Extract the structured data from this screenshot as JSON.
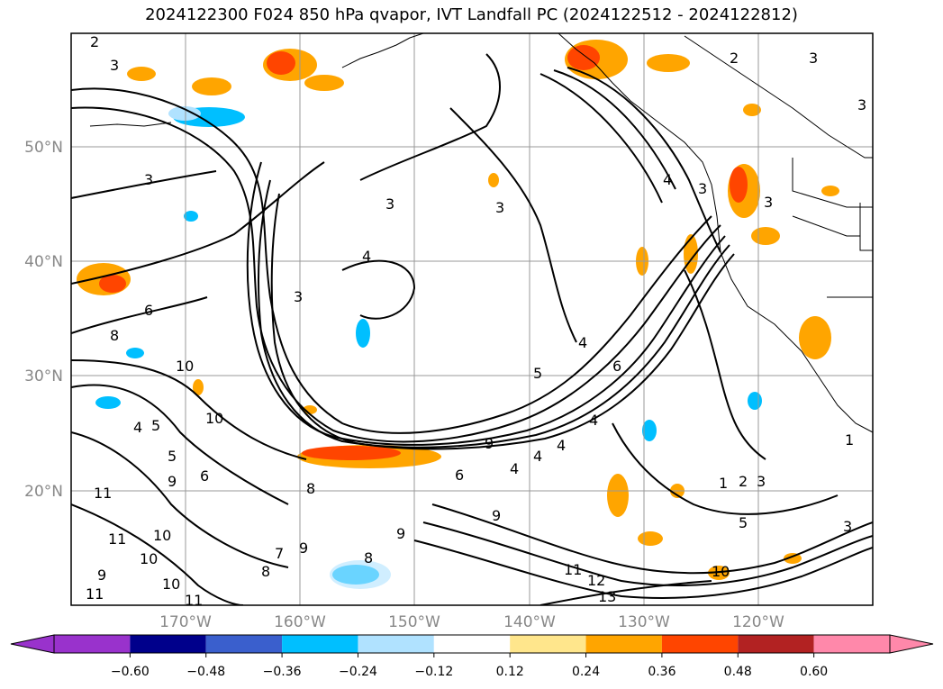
{
  "title": "2024122300 F024 850 hPa qvapor, IVT Landfall PC (2024122512 - 2024122812)",
  "lat_labels": [
    "50°N",
    "40°N",
    "30°N",
    "20°N"
  ],
  "lon_labels": [
    "170°W",
    "160°W",
    "150°W",
    "140°W",
    "130°W",
    "120°W"
  ],
  "contour_labels": [
    "2",
    "3",
    "3",
    "3",
    "4",
    "3",
    "6",
    "8",
    "10",
    "10",
    "4",
    "5",
    "5",
    "9",
    "6",
    "11",
    "11",
    "10",
    "10",
    "10",
    "11",
    "11",
    "9",
    "8",
    "7",
    "8",
    "9",
    "8",
    "9",
    "4",
    "5",
    "4",
    "4",
    "6",
    "9",
    "4",
    "4",
    "6",
    "1",
    "2",
    "3",
    "5",
    "3",
    "11",
    "12",
    "13",
    "10",
    "9",
    "3",
    "4",
    "3",
    "2",
    "3",
    "3",
    "3",
    "1"
  ],
  "colorbar": {
    "ticks": [
      "−0.60",
      "−0.48",
      "−0.36",
      "−0.24",
      "−0.12",
      "0.12",
      "0.24",
      "0.36",
      "0.48",
      "0.60"
    ],
    "colors": [
      "#9932cc",
      "#00008b",
      "#3a5fcd",
      "#00bfff",
      "#b0e2ff",
      "#ffffff",
      "#ffe68c",
      "#ffa500",
      "#ff4500",
      "#b22222",
      "#ff88aa"
    ]
  }
}
